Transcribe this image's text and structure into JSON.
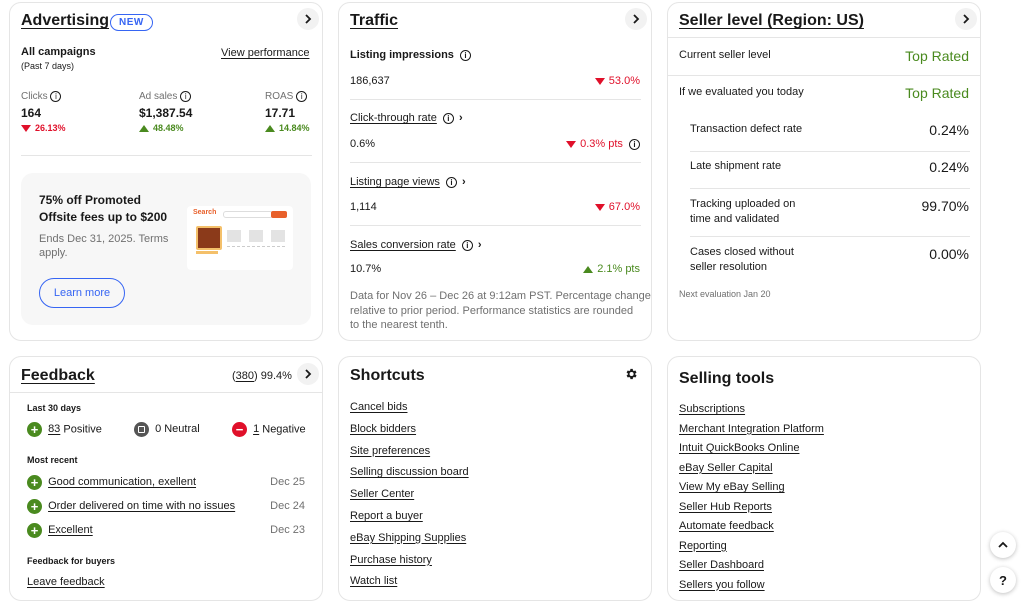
{
  "advertising": {
    "title": "Advertising",
    "badge": "NEW",
    "all_campaigns": "All campaigns",
    "period": "(Past 7 days)",
    "view_performance": "View performance",
    "metrics": [
      {
        "label": "Clicks",
        "value": "164",
        "change": "26.13%",
        "direction": "down"
      },
      {
        "label": "Ad sales",
        "value": "$1,387.54",
        "change": "48.48%",
        "direction": "up"
      },
      {
        "label": "ROAS",
        "value": "17.71",
        "change": "14.84%",
        "direction": "up"
      }
    ],
    "promo": {
      "title_line1": "75% off Promoted",
      "title_line2": "Offsite fees up to $200",
      "ends_line1": "Ends Dec 31, 2025. Terms",
      "ends_line2": "apply.",
      "button": "Learn more",
      "mock_search": "Search"
    }
  },
  "traffic": {
    "title": "Traffic",
    "rows": [
      {
        "label": "Listing impressions",
        "value": "186,637",
        "change": "53.0%",
        "direction": "down"
      },
      {
        "label": "Click-through rate",
        "value": "0.6%",
        "change": "0.3% pts",
        "direction": "down"
      },
      {
        "label": "Listing page views",
        "value": "1,114",
        "change": "67.0%",
        "direction": "down"
      },
      {
        "label": "Sales conversion rate",
        "value": "10.7%",
        "change": "2.1% pts",
        "direction": "up"
      }
    ],
    "footnote_line1": "Data for Nov 26 – Dec 26 at 9:12am PST. Percentage change",
    "footnote_line2": "relative to prior period. Performance statistics are rounded",
    "footnote_line3": "to the nearest tenth."
  },
  "seller_level": {
    "title": "Seller level (Region: US)",
    "current_label": "Current seller level",
    "current_value": "Top Rated",
    "evaluated_label": "If we evaluated you today",
    "evaluated_value": "Top Rated",
    "metrics": [
      {
        "label_line1": "Transaction defect rate",
        "label_line2": "",
        "value": "0.24%"
      },
      {
        "label_line1": "Late shipment rate",
        "label_line2": "",
        "value": "0.24%"
      },
      {
        "label_line1": "Tracking uploaded on",
        "label_line2": "time and validated",
        "value": "99.70%"
      },
      {
        "label_line1": "Cases closed without",
        "label_line2": "seller resolution",
        "value": "0.00%"
      }
    ],
    "next_eval": "Next evaluation Jan 20"
  },
  "feedback": {
    "title": "Feedback",
    "count": "380",
    "percent": "99.4%",
    "last30": "Last 30 days",
    "positive_count": "83",
    "positive_label": "Positive",
    "neutral": "0 Neutral",
    "negative_count": "1",
    "negative_label": "Negative",
    "most_recent": "Most recent",
    "recent": [
      {
        "text": "Good communication, exellent",
        "date": "Dec 25"
      },
      {
        "text": "Order delivered on time with no issues",
        "date": "Dec 24"
      },
      {
        "text": "Excellent",
        "date": "Dec 23"
      }
    ],
    "for_buyers": "Feedback for buyers",
    "leave_feedback": "Leave feedback"
  },
  "shortcuts": {
    "title": "Shortcuts",
    "links": [
      "Cancel bids",
      "Block bidders",
      "Site preferences",
      "Selling discussion board",
      "Seller Center",
      "Report a buyer",
      "eBay Shipping Supplies",
      "Purchase history",
      "Watch list"
    ]
  },
  "selling_tools": {
    "title": "Selling tools",
    "links": [
      "Subscriptions",
      "Merchant Integration Platform",
      "Intuit QuickBooks Online",
      "eBay Seller Capital",
      "View My eBay Selling",
      "Seller Hub Reports",
      "Automate feedback",
      "Reporting",
      "Seller Dashboard",
      "Sellers you follow"
    ]
  },
  "colors": {
    "accent": "#3665f3",
    "positive": "#4a8a1f",
    "negative": "#e0102a",
    "top_rated": "#4a8a1f"
  }
}
